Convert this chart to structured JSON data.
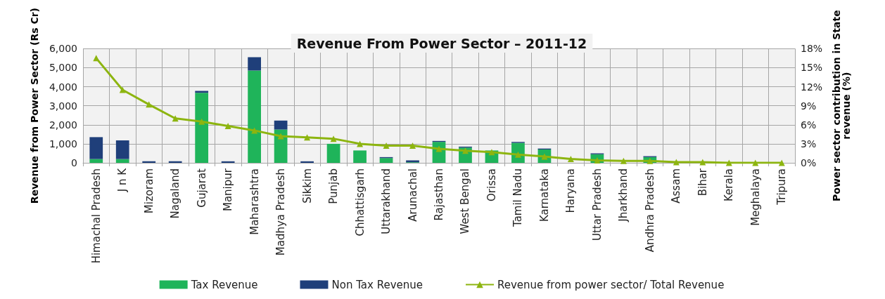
{
  "chart_data": {
    "type": "bar",
    "stacked": true,
    "title": "Revenue From Power Sector – 2011-12",
    "ylabel": "Revenue from Power Sector (Rs Cr)",
    "y2label": "Power sector contribution in State\nrevenue (%)",
    "categories": [
      "Himachal Pradesh",
      "J n K",
      "Mizoram",
      "Nagaland",
      "Gujarat",
      "Manipur",
      "Maharashtra",
      "Madhya Pradesh",
      "Sikkim",
      "Punjab",
      "Chhattisgarh",
      "Uttarakhand",
      "Arunachal",
      "Rajasthan",
      "West Bengal",
      "Orissa",
      "Tamil Nadu",
      "Karnataka",
      "Haryana",
      "Uttar Pradesh",
      "Jharkhand",
      "Andhra Pradesh",
      "Assam",
      "Bihar",
      "Kerala",
      "Meghalaya",
      "Tripura"
    ],
    "series": [
      {
        "name": "Tax Revenue",
        "color": "#1fb45a",
        "values": [
          200,
          200,
          0,
          0,
          3680,
          0,
          4850,
          1750,
          0,
          1000,
          650,
          250,
          30,
          1100,
          800,
          650,
          1050,
          700,
          0,
          450,
          0,
          300,
          0,
          0,
          0,
          0,
          0
        ]
      },
      {
        "name": "Non Tax Revenue",
        "color": "#1f3f7a",
        "values": [
          1150,
          980,
          80,
          80,
          100,
          80,
          700,
          470,
          80,
          0,
          0,
          50,
          100,
          50,
          50,
          0,
          50,
          50,
          0,
          50,
          0,
          50,
          0,
          0,
          0,
          0,
          0
        ]
      },
      {
        "name": "Revenue from power sector/ Total Revenue",
        "type": "line",
        "axis": "y2",
        "color": "#8db510",
        "marker": "triangle",
        "values": [
          16.5,
          11.5,
          9.2,
          7.0,
          6.5,
          5.8,
          5.1,
          4.2,
          4.0,
          3.8,
          3.0,
          2.7,
          2.7,
          2.2,
          1.9,
          1.7,
          1.3,
          1.0,
          0.6,
          0.4,
          0.3,
          0.3,
          0.1,
          0.1,
          0.0,
          0.0,
          0.0
        ]
      }
    ],
    "ylim": [
      0,
      6000
    ],
    "yticks": [
      {
        "value": 0,
        "label": "0"
      },
      {
        "value": 1000,
        "label": "1,000"
      },
      {
        "value": 2000,
        "label": "2,000"
      },
      {
        "value": 3000,
        "label": "3,000"
      },
      {
        "value": 4000,
        "label": "4,000"
      },
      {
        "value": 5000,
        "label": "5,000"
      },
      {
        "value": 6000,
        "label": "6,000"
      }
    ],
    "y2lim": [
      0,
      18
    ],
    "y2ticks": [
      {
        "value": 0,
        "label": "0%"
      },
      {
        "value": 3,
        "label": "3%"
      },
      {
        "value": 6,
        "label": "6%"
      },
      {
        "value": 9,
        "label": "9%"
      },
      {
        "value": 12,
        "label": "12%"
      },
      {
        "value": 15,
        "label": "15%"
      },
      {
        "value": 18,
        "label": "18%"
      }
    ],
    "grid": true,
    "legend": "bottom"
  }
}
